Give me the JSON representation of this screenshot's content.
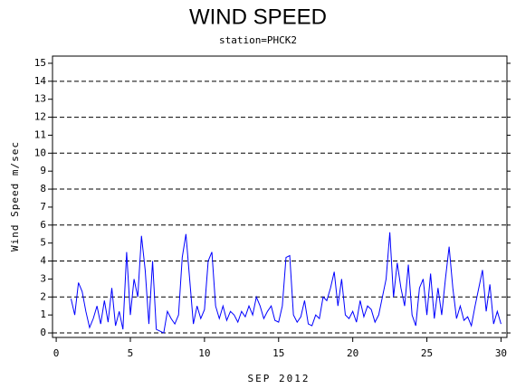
{
  "chart_data": {
    "type": "line",
    "title": "WIND SPEED",
    "subtitle": "station=PHCK2",
    "x_label": "SEP 2012",
    "y_label": "Wind Speed m/sec",
    "xlim": [
      -0.25,
      30.4
    ],
    "xticks": [
      0,
      5,
      10,
      15,
      20,
      25,
      30
    ],
    "ylim": [
      -0.25,
      15.4
    ],
    "yticks": [
      0,
      1,
      2,
      3,
      4,
      5,
      6,
      7,
      8,
      9,
      10,
      11,
      12,
      13,
      14,
      15
    ],
    "grid_lines": [
      0,
      2,
      4,
      6,
      8,
      10,
      12,
      14
    ],
    "series": [
      {
        "color": "#0000ff",
        "x": [
          1,
          1.25,
          1.5,
          1.75,
          2,
          2.25,
          2.5,
          2.75,
          3,
          3.25,
          3.5,
          3.75,
          4,
          4.25,
          4.5,
          4.75,
          5,
          5.25,
          5.5,
          5.75,
          6,
          6.25,
          6.5,
          6.75,
          7,
          7.25,
          7.5,
          7.75,
          8,
          8.25,
          8.5,
          8.75,
          9,
          9.25,
          9.5,
          9.75,
          10,
          10.25,
          10.5,
          10.75,
          11,
          11.25,
          11.5,
          11.75,
          12,
          12.25,
          12.5,
          12.75,
          13,
          13.25,
          13.5,
          13.75,
          14,
          14.25,
          14.5,
          14.75,
          15,
          15.25,
          15.5,
          15.75,
          16,
          16.25,
          16.5,
          16.75,
          17,
          17.25,
          17.5,
          17.75,
          18,
          18.25,
          18.5,
          18.75,
          19,
          19.25,
          19.5,
          19.75,
          20,
          20.25,
          20.5,
          20.75,
          21,
          21.25,
          21.5,
          21.75,
          22,
          22.25,
          22.5,
          22.75,
          23,
          23.25,
          23.5,
          23.75,
          24,
          24.25,
          24.5,
          24.75,
          25,
          25.25,
          25.5,
          25.75,
          26,
          26.25,
          26.5,
          26.75,
          27,
          27.25,
          27.5,
          27.75,
          28,
          28.25,
          28.5,
          28.75,
          29,
          29.25,
          29.5,
          29.75,
          30
        ],
        "values": [
          1.9,
          1.0,
          2.8,
          2.3,
          1.2,
          0.3,
          0.8,
          1.5,
          0.5,
          1.8,
          0.6,
          2.5,
          0.4,
          1.2,
          0.2,
          4.5,
          1.0,
          3.0,
          2.0,
          5.4,
          3.5,
          0.5,
          4.0,
          0.2,
          0.1,
          0.0,
          1.2,
          0.8,
          0.5,
          1.0,
          4.2,
          5.5,
          3.0,
          0.5,
          1.5,
          0.8,
          1.3,
          4.0,
          4.5,
          1.5,
          0.8,
          1.5,
          0.7,
          1.2,
          1.0,
          0.6,
          1.2,
          0.9,
          1.5,
          1.0,
          2.0,
          1.5,
          0.8,
          1.2,
          1.5,
          0.7,
          0.6,
          1.5,
          4.2,
          4.3,
          1.0,
          0.6,
          0.9,
          1.8,
          0.5,
          0.4,
          1.0,
          0.8,
          2.0,
          1.8,
          2.5,
          3.4,
          1.5,
          3.0,
          1.0,
          0.8,
          1.2,
          0.6,
          1.8,
          0.9,
          1.5,
          1.3,
          0.6,
          1.0,
          2.0,
          3.0,
          5.6,
          2.0,
          3.9,
          2.5,
          1.5,
          3.8,
          1.0,
          0.4,
          2.5,
          3.0,
          1.0,
          3.3,
          0.8,
          2.5,
          1.0,
          3.0,
          4.8,
          2.5,
          0.8,
          1.5,
          0.7,
          0.9,
          0.4,
          1.5,
          2.5,
          3.5,
          1.2,
          2.7,
          0.5,
          1.2,
          0.5
        ]
      }
    ]
  }
}
